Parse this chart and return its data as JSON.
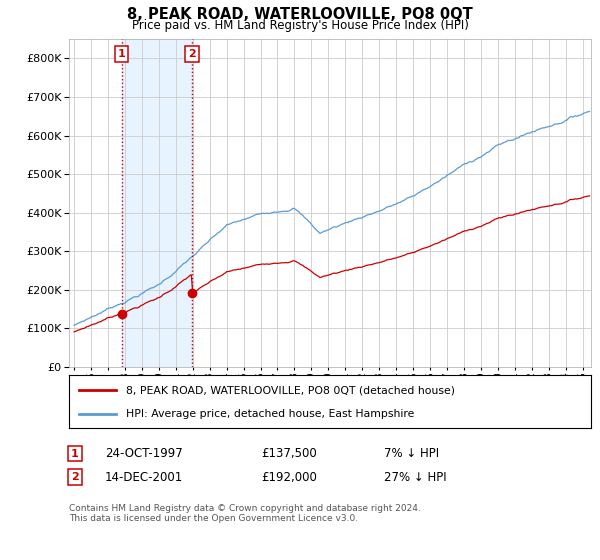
{
  "title": "8, PEAK ROAD, WATERLOOVILLE, PO8 0QT",
  "subtitle": "Price paid vs. HM Land Registry's House Price Index (HPI)",
  "legend_line1": "8, PEAK ROAD, WATERLOOVILLE, PO8 0QT (detached house)",
  "legend_line2": "HPI: Average price, detached house, East Hampshire",
  "transaction1_date": "24-OCT-1997",
  "transaction1_price": 137500,
  "transaction1_label": "7% ↓ HPI",
  "transaction2_date": "14-DEC-2001",
  "transaction2_price": 192000,
  "transaction2_label": "27% ↓ HPI",
  "footer": "Contains HM Land Registry data © Crown copyright and database right 2024.\nThis data is licensed under the Open Government Licence v3.0.",
  "hpi_color": "#5b9bd5",
  "price_color": "#cc0000",
  "marker_color": "#cc0000",
  "vline_color": "#cc0000",
  "shade_color": "#ddeeff",
  "grid_color": "#cccccc",
  "background_color": "#ffffff",
  "ylim": [
    0,
    850000
  ],
  "xlim_start": 1994.7,
  "xlim_end": 2025.5,
  "t1_year": 1997.8,
  "t2_year": 2001.96,
  "t1_price": 137500,
  "t2_price": 192000
}
